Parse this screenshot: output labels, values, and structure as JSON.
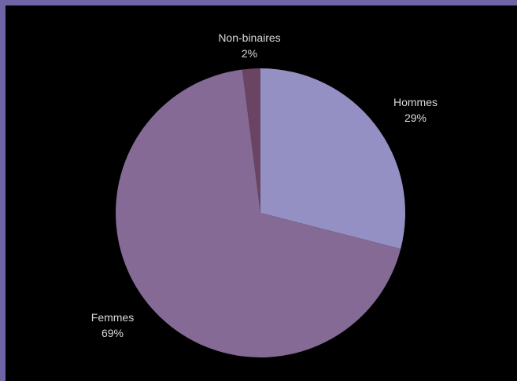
{
  "chart_data": {
    "type": "pie",
    "title": "",
    "slices": [
      {
        "label": "Hommes",
        "value": 29,
        "value_label": "29%",
        "color": "#9490c4"
      },
      {
        "label": "Femmes",
        "value": 69,
        "value_label": "69%",
        "color": "#846a95"
      },
      {
        "label": "Non-binaires",
        "value": 2,
        "value_label": "2%",
        "color": "#6b4463"
      }
    ],
    "start_angle_deg": 0,
    "direction": "clockwise",
    "legend": "none",
    "background_color": "#000000",
    "frame_color": "#6f64a8"
  }
}
